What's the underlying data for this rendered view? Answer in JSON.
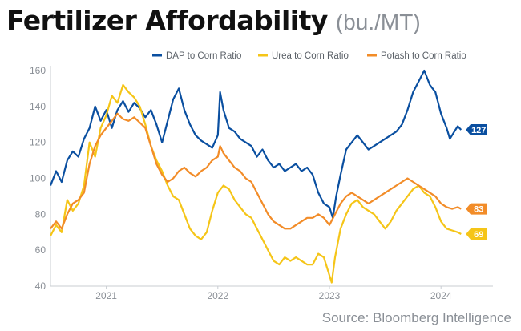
{
  "title": "Fertilizer Affordability",
  "subtitle": "(bu./MT)",
  "source": "Source: Bloomberg Intelligence",
  "chart_data": {
    "type": "line",
    "x_label_positions": [
      2021.0,
      2022.0,
      2023.0,
      2024.0
    ],
    "x_labels": [
      "2021",
      "2022",
      "2023",
      "2024"
    ],
    "xlim": [
      2020.5,
      2024.25
    ],
    "ylim": [
      40,
      160
    ],
    "yticks": [
      40,
      60,
      80,
      100,
      120,
      140,
      160
    ],
    "grid": false,
    "legend_position": "top-right",
    "series": [
      {
        "name": "DAP to Corn Ratio",
        "color": "#0a4fa0",
        "end_label": "127",
        "points": [
          [
            2020.5,
            96
          ],
          [
            2020.55,
            104
          ],
          [
            2020.6,
            98
          ],
          [
            2020.65,
            110
          ],
          [
            2020.7,
            115
          ],
          [
            2020.75,
            112
          ],
          [
            2020.8,
            122
          ],
          [
            2020.85,
            128
          ],
          [
            2020.9,
            140
          ],
          [
            2020.95,
            132
          ],
          [
            2021.0,
            138
          ],
          [
            2021.05,
            128
          ],
          [
            2021.1,
            138
          ],
          [
            2021.15,
            143
          ],
          [
            2021.2,
            137
          ],
          [
            2021.25,
            142
          ],
          [
            2021.3,
            139
          ],
          [
            2021.35,
            134
          ],
          [
            2021.4,
            138
          ],
          [
            2021.45,
            130
          ],
          [
            2021.5,
            120
          ],
          [
            2021.55,
            132
          ],
          [
            2021.6,
            144
          ],
          [
            2021.65,
            150
          ],
          [
            2021.7,
            138
          ],
          [
            2021.75,
            130
          ],
          [
            2021.8,
            124
          ],
          [
            2021.85,
            121
          ],
          [
            2021.9,
            119
          ],
          [
            2021.95,
            117
          ],
          [
            2022.0,
            124
          ],
          [
            2022.02,
            148
          ],
          [
            2022.05,
            138
          ],
          [
            2022.1,
            128
          ],
          [
            2022.15,
            126
          ],
          [
            2022.2,
            122
          ],
          [
            2022.25,
            120
          ],
          [
            2022.3,
            118
          ],
          [
            2022.35,
            112
          ],
          [
            2022.4,
            116
          ],
          [
            2022.45,
            110
          ],
          [
            2022.5,
            106
          ],
          [
            2022.55,
            108
          ],
          [
            2022.6,
            104
          ],
          [
            2022.65,
            106
          ],
          [
            2022.7,
            108
          ],
          [
            2022.75,
            104
          ],
          [
            2022.8,
            106
          ],
          [
            2022.85,
            102
          ],
          [
            2022.9,
            92
          ],
          [
            2022.95,
            86
          ],
          [
            2023.0,
            84
          ],
          [
            2023.03,
            78
          ],
          [
            2023.06,
            90
          ],
          [
            2023.1,
            102
          ],
          [
            2023.15,
            116
          ],
          [
            2023.2,
            120
          ],
          [
            2023.25,
            124
          ],
          [
            2023.3,
            120
          ],
          [
            2023.35,
            116
          ],
          [
            2023.4,
            118
          ],
          [
            2023.45,
            120
          ],
          [
            2023.5,
            122
          ],
          [
            2023.55,
            124
          ],
          [
            2023.6,
            126
          ],
          [
            2023.65,
            130
          ],
          [
            2023.7,
            138
          ],
          [
            2023.75,
            148
          ],
          [
            2023.8,
            154
          ],
          [
            2023.85,
            160
          ],
          [
            2023.9,
            152
          ],
          [
            2023.95,
            148
          ],
          [
            2024.0,
            136
          ],
          [
            2024.05,
            128
          ],
          [
            2024.08,
            122
          ],
          [
            2024.12,
            126
          ],
          [
            2024.15,
            129
          ],
          [
            2024.18,
            127
          ]
        ]
      },
      {
        "name": "Urea to Corn Ratio",
        "color": "#f5c518",
        "end_label": "69",
        "points": [
          [
            2020.5,
            68
          ],
          [
            2020.55,
            74
          ],
          [
            2020.6,
            70
          ],
          [
            2020.65,
            88
          ],
          [
            2020.7,
            82
          ],
          [
            2020.75,
            86
          ],
          [
            2020.8,
            96
          ],
          [
            2020.85,
            120
          ],
          [
            2020.9,
            112
          ],
          [
            2020.95,
            128
          ],
          [
            2021.0,
            135
          ],
          [
            2021.05,
            146
          ],
          [
            2021.1,
            142
          ],
          [
            2021.15,
            152
          ],
          [
            2021.2,
            148
          ],
          [
            2021.25,
            145
          ],
          [
            2021.3,
            140
          ],
          [
            2021.35,
            130
          ],
          [
            2021.4,
            118
          ],
          [
            2021.45,
            110
          ],
          [
            2021.5,
            104
          ],
          [
            2021.55,
            96
          ],
          [
            2021.6,
            90
          ],
          [
            2021.65,
            88
          ],
          [
            2021.7,
            80
          ],
          [
            2021.75,
            72
          ],
          [
            2021.8,
            68
          ],
          [
            2021.85,
            66
          ],
          [
            2021.9,
            70
          ],
          [
            2021.95,
            82
          ],
          [
            2022.0,
            92
          ],
          [
            2022.05,
            96
          ],
          [
            2022.1,
            94
          ],
          [
            2022.15,
            88
          ],
          [
            2022.2,
            84
          ],
          [
            2022.25,
            80
          ],
          [
            2022.3,
            78
          ],
          [
            2022.35,
            72
          ],
          [
            2022.4,
            66
          ],
          [
            2022.45,
            60
          ],
          [
            2022.5,
            54
          ],
          [
            2022.55,
            52
          ],
          [
            2022.6,
            56
          ],
          [
            2022.65,
            54
          ],
          [
            2022.7,
            56
          ],
          [
            2022.75,
            54
          ],
          [
            2022.8,
            52
          ],
          [
            2022.85,
            52
          ],
          [
            2022.9,
            58
          ],
          [
            2022.95,
            56
          ],
          [
            2023.0,
            46
          ],
          [
            2023.02,
            42
          ],
          [
            2023.05,
            56
          ],
          [
            2023.1,
            72
          ],
          [
            2023.15,
            80
          ],
          [
            2023.2,
            86
          ],
          [
            2023.25,
            88
          ],
          [
            2023.3,
            84
          ],
          [
            2023.35,
            82
          ],
          [
            2023.4,
            80
          ],
          [
            2023.45,
            76
          ],
          [
            2023.5,
            72
          ],
          [
            2023.55,
            76
          ],
          [
            2023.6,
            82
          ],
          [
            2023.65,
            86
          ],
          [
            2023.7,
            90
          ],
          [
            2023.75,
            94
          ],
          [
            2023.8,
            96
          ],
          [
            2023.85,
            92
          ],
          [
            2023.9,
            90
          ],
          [
            2023.95,
            84
          ],
          [
            2024.0,
            76
          ],
          [
            2024.05,
            72
          ],
          [
            2024.1,
            71
          ],
          [
            2024.15,
            70
          ],
          [
            2024.18,
            69
          ]
        ]
      },
      {
        "name": "Potash to Corn Ratio",
        "color": "#f28c28",
        "end_label": "83",
        "points": [
          [
            2020.5,
            72
          ],
          [
            2020.55,
            76
          ],
          [
            2020.6,
            72
          ],
          [
            2020.65,
            80
          ],
          [
            2020.7,
            86
          ],
          [
            2020.75,
            88
          ],
          [
            2020.8,
            92
          ],
          [
            2020.85,
            108
          ],
          [
            2020.9,
            118
          ],
          [
            2020.95,
            124
          ],
          [
            2021.0,
            128
          ],
          [
            2021.05,
            132
          ],
          [
            2021.1,
            136
          ],
          [
            2021.15,
            133
          ],
          [
            2021.2,
            132
          ],
          [
            2021.25,
            134
          ],
          [
            2021.3,
            131
          ],
          [
            2021.35,
            128
          ],
          [
            2021.4,
            118
          ],
          [
            2021.45,
            108
          ],
          [
            2021.5,
            102
          ],
          [
            2021.55,
            98
          ],
          [
            2021.6,
            100
          ],
          [
            2021.65,
            104
          ],
          [
            2021.7,
            106
          ],
          [
            2021.75,
            103
          ],
          [
            2021.8,
            101
          ],
          [
            2021.85,
            104
          ],
          [
            2021.9,
            106
          ],
          [
            2021.95,
            110
          ],
          [
            2022.0,
            112
          ],
          [
            2022.02,
            118
          ],
          [
            2022.05,
            114
          ],
          [
            2022.1,
            110
          ],
          [
            2022.15,
            106
          ],
          [
            2022.2,
            104
          ],
          [
            2022.25,
            100
          ],
          [
            2022.3,
            98
          ],
          [
            2022.35,
            92
          ],
          [
            2022.4,
            86
          ],
          [
            2022.45,
            80
          ],
          [
            2022.5,
            76
          ],
          [
            2022.55,
            74
          ],
          [
            2022.6,
            72
          ],
          [
            2022.65,
            72
          ],
          [
            2022.7,
            74
          ],
          [
            2022.75,
            76
          ],
          [
            2022.8,
            78
          ],
          [
            2022.85,
            78
          ],
          [
            2022.9,
            80
          ],
          [
            2022.95,
            78
          ],
          [
            2023.0,
            74
          ],
          [
            2023.05,
            80
          ],
          [
            2023.1,
            86
          ],
          [
            2023.15,
            90
          ],
          [
            2023.2,
            92
          ],
          [
            2023.25,
            90
          ],
          [
            2023.3,
            88
          ],
          [
            2023.35,
            86
          ],
          [
            2023.4,
            88
          ],
          [
            2023.45,
            90
          ],
          [
            2023.5,
            92
          ],
          [
            2023.55,
            94
          ],
          [
            2023.6,
            96
          ],
          [
            2023.65,
            98
          ],
          [
            2023.7,
            100
          ],
          [
            2023.75,
            98
          ],
          [
            2023.8,
            96
          ],
          [
            2023.85,
            94
          ],
          [
            2023.9,
            92
          ],
          [
            2023.95,
            90
          ],
          [
            2024.0,
            86
          ],
          [
            2024.05,
            84
          ],
          [
            2024.1,
            83
          ],
          [
            2024.15,
            84
          ],
          [
            2024.18,
            83
          ]
        ]
      }
    ]
  }
}
